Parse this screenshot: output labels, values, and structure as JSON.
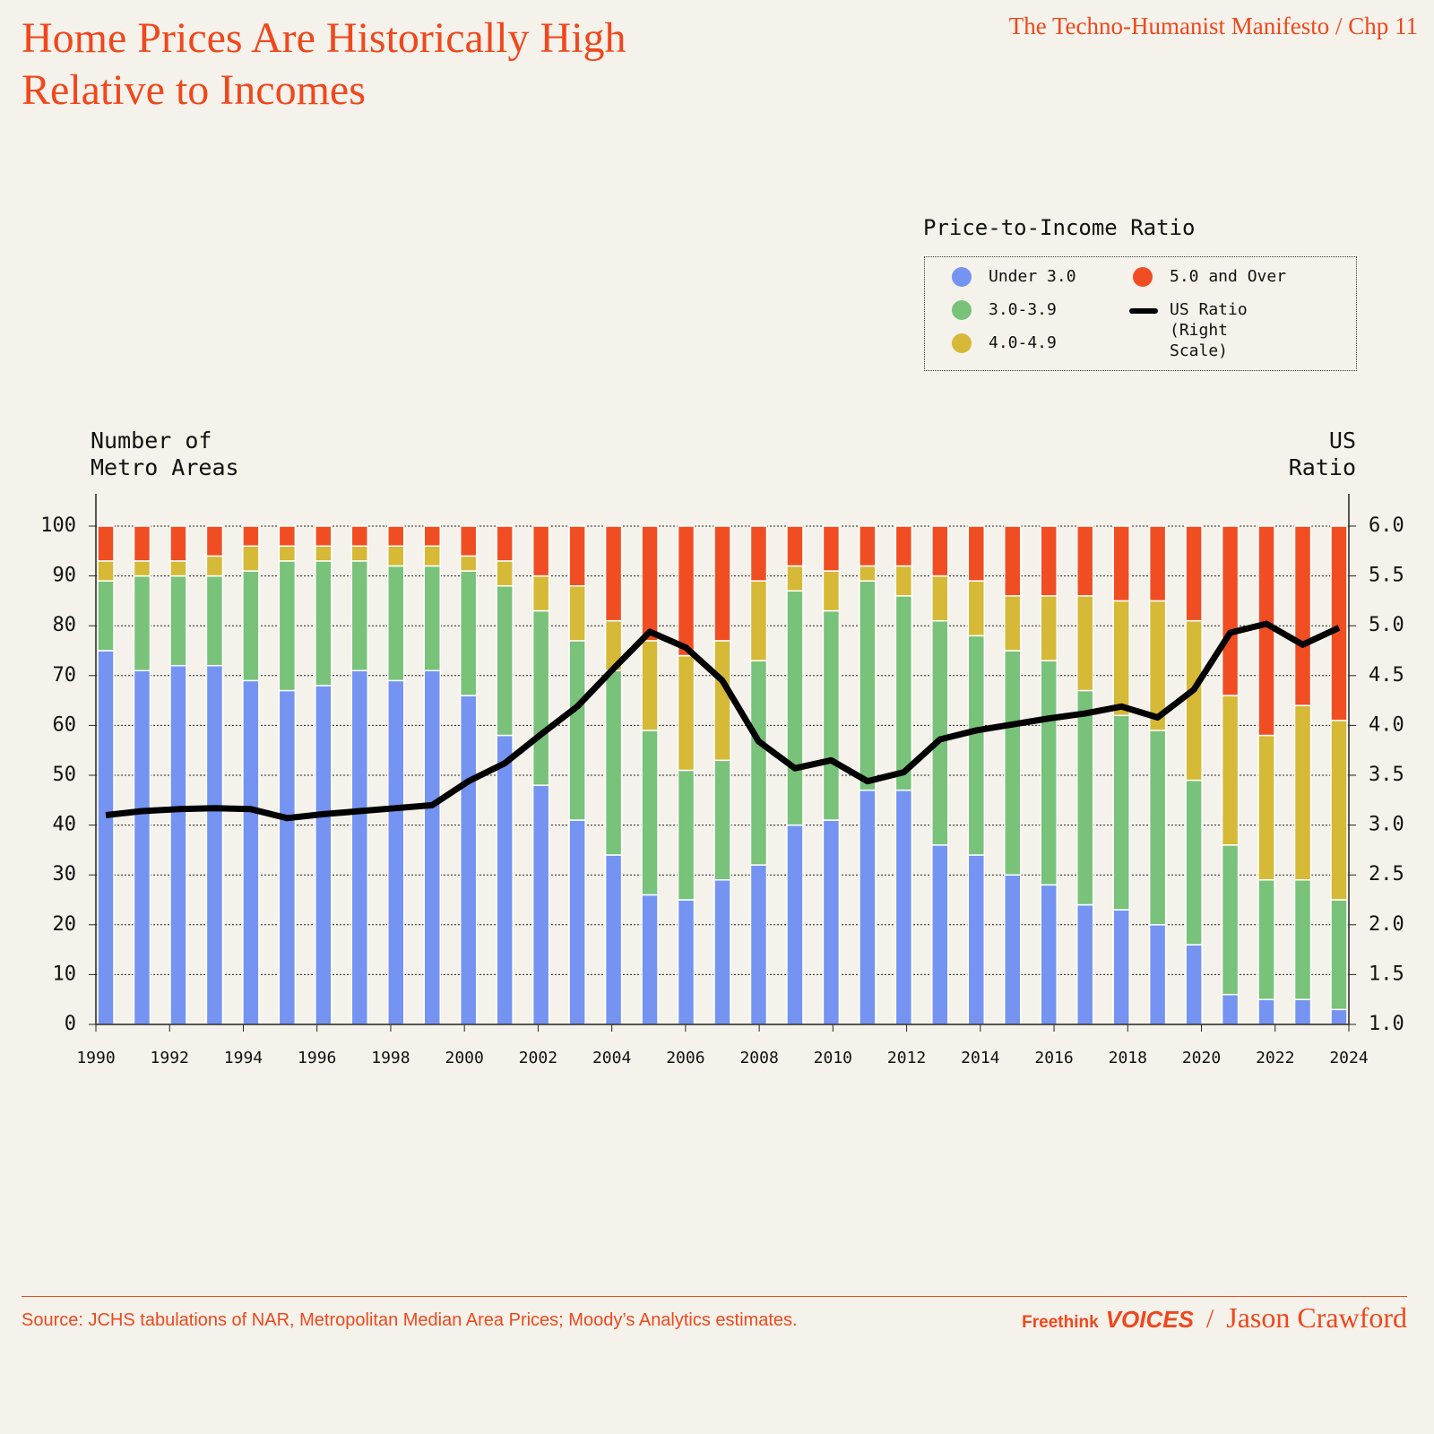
{
  "header": {
    "title": "Home Prices Are Historically High Relative to Incomes",
    "series_label": "The Techno-Humanist Manifesto / Chp 11"
  },
  "chart_data": {
    "type": "stacked-bar-line",
    "legend_title": "Price-to-Income Ratio",
    "y_label": "Number of Metro Areas",
    "y2_label": "US Ratio",
    "x": [
      1990,
      1991,
      1992,
      1993,
      1994,
      1995,
      1996,
      1997,
      1998,
      1999,
      2000,
      2001,
      2002,
      2003,
      2004,
      2005,
      2006,
      2007,
      2008,
      2009,
      2010,
      2011,
      2012,
      2013,
      2014,
      2015,
      2016,
      2017,
      2018,
      2019,
      2020,
      2021,
      2022,
      2023,
      2024
    ],
    "xlim": [
      1990,
      2024
    ],
    "xticks": [
      1990,
      1992,
      1994,
      1996,
      1998,
      2000,
      2002,
      2004,
      2006,
      2008,
      2010,
      2012,
      2014,
      2016,
      2018,
      2020,
      2022,
      2024
    ],
    "ylim": [
      0,
      100
    ],
    "yticks": [
      0,
      10,
      20,
      30,
      40,
      50,
      60,
      70,
      80,
      90,
      100
    ],
    "y2lim": [
      1,
      6
    ],
    "y2ticks": [
      {
        "value": 1,
        "label": "1.0"
      },
      1.5,
      {
        "value": 2,
        "label": "2.0"
      },
      2.5,
      {
        "value": 3,
        "label": "3.0"
      },
      3.5,
      {
        "value": 4,
        "label": "4.0"
      },
      4.5,
      {
        "value": 5,
        "label": "5.0"
      },
      5.5,
      {
        "value": 6,
        "label": "6.0"
      }
    ],
    "grid": true,
    "series": [
      {
        "name": "Under 3.0",
        "color": "#7593f1",
        "values": [
          75,
          71,
          72,
          72,
          69,
          67,
          68,
          71,
          69,
          71,
          66,
          58,
          48,
          41,
          34,
          26,
          25,
          29,
          32,
          40,
          41,
          47,
          47,
          36,
          34,
          30,
          28,
          24,
          23,
          20,
          16,
          6,
          5,
          5,
          3
        ]
      },
      {
        "name": "3.0-3.9",
        "color": "#78c279",
        "values": [
          14,
          19,
          18,
          18,
          22,
          26,
          25,
          22,
          23,
          21,
          25,
          30,
          35,
          36,
          37,
          33,
          26,
          24,
          41,
          47,
          42,
          42,
          39,
          45,
          44,
          45,
          45,
          43,
          39,
          39,
          33,
          30,
          24,
          24,
          22
        ]
      },
      {
        "name": "4.0-4.9",
        "color": "#d5b937",
        "values": [
          4,
          3,
          3,
          4,
          5,
          3,
          3,
          3,
          4,
          4,
          3,
          5,
          7,
          11,
          10,
          18,
          23,
          24,
          16,
          5,
          8,
          3,
          6,
          9,
          11,
          11,
          13,
          19,
          23,
          26,
          32,
          30,
          29,
          35,
          36
        ]
      },
      {
        "name": "5.0 and Over",
        "color": "#f04e22",
        "values": [
          7,
          7,
          7,
          6,
          4,
          4,
          4,
          4,
          4,
          4,
          6,
          7,
          10,
          12,
          19,
          23,
          26,
          23,
          11,
          8,
          9,
          8,
          8,
          10,
          11,
          14,
          14,
          14,
          15,
          15,
          19,
          34,
          42,
          36,
          39
        ]
      },
      {
        "name": "US Ratio (Right Scale)",
        "color": "#000000",
        "axis": "y2",
        "values": [
          3.1,
          3.14,
          3.16,
          3.17,
          3.16,
          3.07,
          3.11,
          3.14,
          3.17,
          3.2,
          3.44,
          3.62,
          3.91,
          4.19,
          4.57,
          4.94,
          4.78,
          4.45,
          3.84,
          3.57,
          3.65,
          3.44,
          3.53,
          3.86,
          3.95,
          4.01,
          4.07,
          4.12,
          4.19,
          4.08,
          4.36,
          4.93,
          5.02,
          4.81,
          4.98
        ]
      }
    ]
  },
  "footer": {
    "source": "Source: JCHS tabulations of NAR, Metropolitan Median Area Prices; Moody’s Analytics estimates.",
    "brand": "Freethink",
    "brand2": "VOICES",
    "separator": "/",
    "author": "Jason Crawford"
  }
}
